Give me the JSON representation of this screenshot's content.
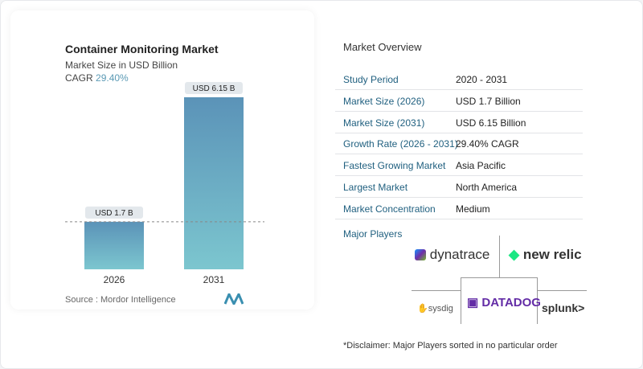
{
  "chart_data": {
    "type": "bar",
    "title": "Container Monitoring Market",
    "subtitle": "Market Size in USD Billion",
    "cagr_label": "CAGR",
    "cagr_value": "29.40%",
    "categories": [
      "2026",
      "2031"
    ],
    "values": [
      1.7,
      6.15
    ],
    "data_labels": [
      "USD 1.7 B",
      "USD 6.15 B"
    ],
    "bar_color_top": "#5b93b8",
    "bar_color_bottom": "#7cc6cf",
    "reference_line": "dashed at 2026 value"
  },
  "source": "Source :  Mordor Intelligence",
  "overview": {
    "title": "Market Overview",
    "rows": [
      {
        "k": "Study Period",
        "v": "2020 - 2031"
      },
      {
        "k": "Market Size (2026)",
        "v": "USD 1.7 Billion"
      },
      {
        "k": "Market Size (2031)",
        "v": "USD 6.15 Billion"
      },
      {
        "k": "Growth Rate (2026 - 2031)",
        "v": "29.40% CAGR"
      },
      {
        "k": "Fastest Growing Market",
        "v": "Asia Pacific"
      },
      {
        "k": "Largest Market",
        "v": "North America"
      },
      {
        "k": "Market Concentration",
        "v": "Medium"
      }
    ],
    "major_players_label": "Major Players",
    "players": [
      "dynatrace",
      "new relic",
      "sysdig",
      "DATADOG",
      "splunk>"
    ],
    "disclaimer": "*Disclaimer: Major Players sorted in no particular order"
  }
}
